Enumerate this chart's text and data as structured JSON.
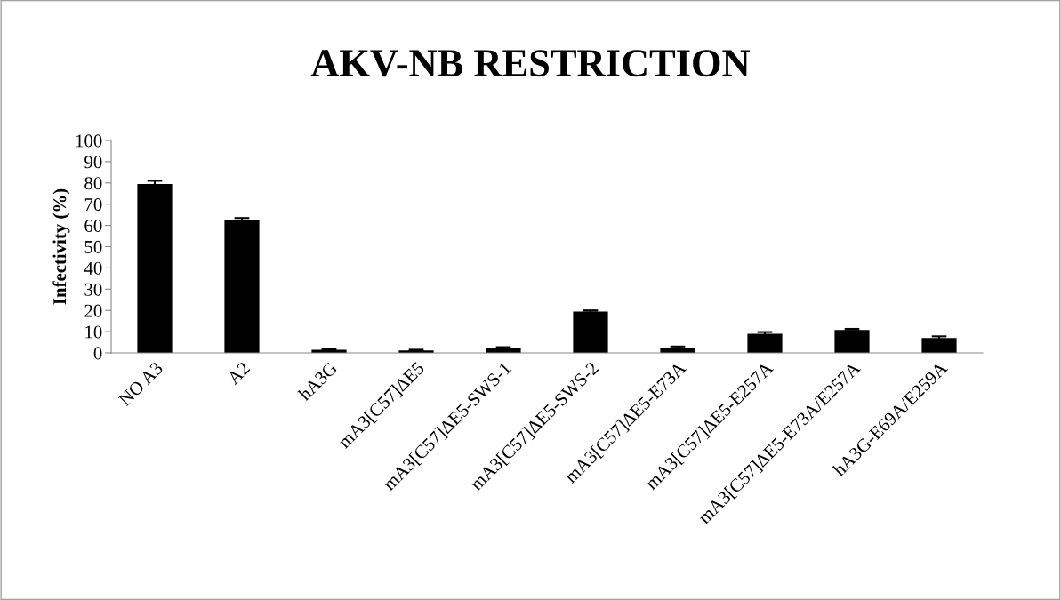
{
  "chart_data": {
    "type": "bar",
    "title": "AKV-NB RESTRICTION",
    "ylabel": "Infectivity (%)",
    "categories": [
      "NO A3",
      "A2",
      "hA3G",
      "mA3[C57]ΔE5",
      "mA3[C57]ΔE5-SWS-1",
      "mA3[C57]ΔE5-SWS-2",
      "mA3[C57]ΔE5-E73A",
      "mA3[C57]ΔE5-E257A",
      "mA3[C57]ΔE5-E73A/E257A",
      "hA3G-E69A/E259A"
    ],
    "values": [
      79.5,
      62.5,
      1.5,
      1.2,
      2.3,
      19.5,
      2.5,
      9,
      10.8,
      7
    ],
    "errors": [
      1.5,
      1,
      0.3,
      0.3,
      0.4,
      0.5,
      0.5,
      0.8,
      0.5,
      0.8
    ],
    "color": "#000000",
    "ylim": [
      0,
      100
    ],
    "yticks": [
      0,
      10,
      20,
      30,
      40,
      50,
      60,
      70,
      80,
      90,
      100
    ],
    "grid": false
  }
}
